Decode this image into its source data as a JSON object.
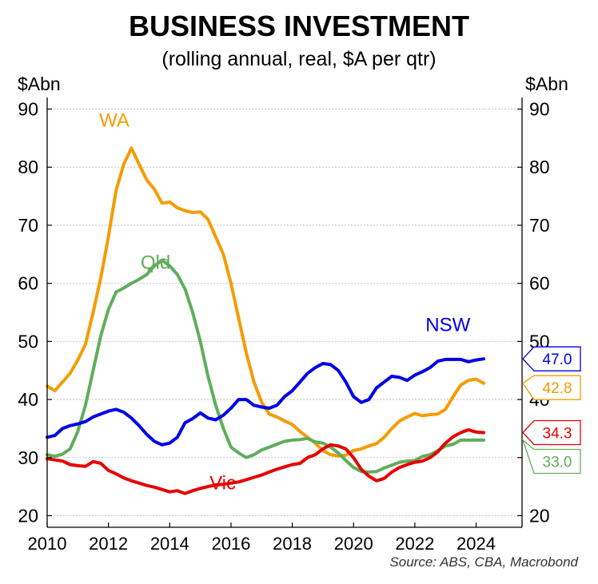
{
  "chart_data": {
    "type": "line",
    "title": "BUSINESS INVESTMENT",
    "subtitle": "(rolling annual, real, $A per qtr)",
    "ylabel_left": "$Abn",
    "ylabel_right": "$Abn",
    "source": "Source: ABS, CBA, Macrobond",
    "xlim": [
      2010,
      2025.5
    ],
    "ylim": [
      18,
      92
    ],
    "x_ticks": [
      2010,
      2012,
      2014,
      2016,
      2018,
      2020,
      2022,
      2024
    ],
    "y_ticks": [
      20,
      30,
      40,
      50,
      60,
      70,
      80,
      90
    ],
    "right_y_ticks": [
      20,
      30,
      40,
      50,
      60,
      70,
      80,
      90
    ],
    "grid": true,
    "series": [
      {
        "name": "WA",
        "color": "#f59c00",
        "end_label": "42.8",
        "label_x": 2011.7,
        "label_y": 87,
        "points": [
          [
            2010.0,
            42.3
          ],
          [
            2010.25,
            41.5
          ],
          [
            2010.5,
            43
          ],
          [
            2010.75,
            44.5
          ],
          [
            2011.0,
            46.8
          ],
          [
            2011.25,
            49.5
          ],
          [
            2011.5,
            55
          ],
          [
            2011.75,
            61
          ],
          [
            2012.0,
            68
          ],
          [
            2012.25,
            76
          ],
          [
            2012.5,
            80.5
          ],
          [
            2012.75,
            83.3
          ],
          [
            2013.0,
            80.5
          ],
          [
            2013.25,
            77.8
          ],
          [
            2013.5,
            76.2
          ],
          [
            2013.75,
            73.8
          ],
          [
            2014.0,
            74
          ],
          [
            2014.25,
            73
          ],
          [
            2014.5,
            72.5
          ],
          [
            2014.75,
            72.2
          ],
          [
            2015.0,
            72.3
          ],
          [
            2015.25,
            71
          ],
          [
            2015.5,
            68
          ],
          [
            2015.75,
            65
          ],
          [
            2016.0,
            60
          ],
          [
            2016.25,
            54
          ],
          [
            2016.5,
            48
          ],
          [
            2016.75,
            43
          ],
          [
            2017.0,
            39.5
          ],
          [
            2017.25,
            37.5
          ],
          [
            2017.5,
            37
          ],
          [
            2017.75,
            36.3
          ],
          [
            2018.0,
            35.7
          ],
          [
            2018.25,
            34.5
          ],
          [
            2018.5,
            33.5
          ],
          [
            2018.75,
            32.5
          ],
          [
            2019.0,
            31.2
          ],
          [
            2019.25,
            30.5
          ],
          [
            2019.5,
            30.3
          ],
          [
            2019.75,
            30.4
          ],
          [
            2020.0,
            31.2
          ],
          [
            2020.25,
            31.5
          ],
          [
            2020.5,
            32
          ],
          [
            2020.75,
            32.4
          ],
          [
            2021.0,
            33.5
          ],
          [
            2021.25,
            35
          ],
          [
            2021.5,
            36.3
          ],
          [
            2021.75,
            37
          ],
          [
            2022.0,
            37.6
          ],
          [
            2022.25,
            37.2
          ],
          [
            2022.5,
            37.4
          ],
          [
            2022.75,
            37.5
          ],
          [
            2023.0,
            38.3
          ],
          [
            2023.25,
            40.5
          ],
          [
            2023.5,
            42.5
          ],
          [
            2023.75,
            43.3
          ],
          [
            2024.0,
            43.5
          ],
          [
            2024.25,
            42.8
          ]
        ]
      },
      {
        "name": "Qld",
        "color": "#5fae5a",
        "end_label": "33.0",
        "label_x": 2013.05,
        "label_y": 62.5,
        "points": [
          [
            2010.0,
            30.5
          ],
          [
            2010.25,
            30.2
          ],
          [
            2010.5,
            30.6
          ],
          [
            2010.75,
            31.5
          ],
          [
            2011.0,
            34.5
          ],
          [
            2011.25,
            39
          ],
          [
            2011.5,
            45
          ],
          [
            2011.75,
            51
          ],
          [
            2012.0,
            55.5
          ],
          [
            2012.25,
            58.5
          ],
          [
            2012.5,
            59.2
          ],
          [
            2012.75,
            60
          ],
          [
            2013.0,
            60.7
          ],
          [
            2013.25,
            61.5
          ],
          [
            2013.5,
            63
          ],
          [
            2013.75,
            64
          ],
          [
            2014.0,
            63
          ],
          [
            2014.25,
            61.5
          ],
          [
            2014.5,
            59
          ],
          [
            2014.75,
            55
          ],
          [
            2015.0,
            50
          ],
          [
            2015.25,
            44
          ],
          [
            2015.5,
            39
          ],
          [
            2015.75,
            35
          ],
          [
            2016.0,
            31.8
          ],
          [
            2016.25,
            30.8
          ],
          [
            2016.5,
            30
          ],
          [
            2016.75,
            30.5
          ],
          [
            2017.0,
            31.3
          ],
          [
            2017.25,
            31.8
          ],
          [
            2017.5,
            32.3
          ],
          [
            2017.75,
            32.8
          ],
          [
            2018.0,
            33
          ],
          [
            2018.25,
            33.1
          ],
          [
            2018.5,
            33.3
          ],
          [
            2018.75,
            32.7
          ],
          [
            2019.0,
            32.5
          ],
          [
            2019.25,
            31.8
          ],
          [
            2019.5,
            30.8
          ],
          [
            2019.75,
            29.5
          ],
          [
            2020.0,
            28.3
          ],
          [
            2020.25,
            27.6
          ],
          [
            2020.5,
            27.5
          ],
          [
            2020.75,
            27.6
          ],
          [
            2021.0,
            28.2
          ],
          [
            2021.25,
            28.7
          ],
          [
            2021.5,
            29.2
          ],
          [
            2021.75,
            29.4
          ],
          [
            2022.0,
            29.5
          ],
          [
            2022.25,
            30.2
          ],
          [
            2022.5,
            30.5
          ],
          [
            2022.75,
            31.2
          ],
          [
            2023.0,
            32
          ],
          [
            2023.25,
            32.3
          ],
          [
            2023.5,
            33
          ],
          [
            2023.75,
            33
          ],
          [
            2024.0,
            33
          ],
          [
            2024.25,
            33
          ]
        ]
      },
      {
        "name": "NSW",
        "color": "#0000e6",
        "end_label": "47.0",
        "label_x": 2022.35,
        "label_y": 51.8,
        "points": [
          [
            2010.0,
            33.5
          ],
          [
            2010.25,
            33.8
          ],
          [
            2010.5,
            35
          ],
          [
            2010.75,
            35.5
          ],
          [
            2011.0,
            35.8
          ],
          [
            2011.25,
            36.2
          ],
          [
            2011.5,
            37
          ],
          [
            2011.75,
            37.5
          ],
          [
            2012.0,
            38
          ],
          [
            2012.25,
            38.3
          ],
          [
            2012.5,
            37.8
          ],
          [
            2012.75,
            36.8
          ],
          [
            2013.0,
            35.5
          ],
          [
            2013.25,
            34
          ],
          [
            2013.5,
            32.8
          ],
          [
            2013.75,
            32.2
          ],
          [
            2014.0,
            32.5
          ],
          [
            2014.25,
            33.5
          ],
          [
            2014.5,
            36
          ],
          [
            2014.75,
            36.7
          ],
          [
            2015.0,
            37.7
          ],
          [
            2015.25,
            36.8
          ],
          [
            2015.5,
            36.5
          ],
          [
            2015.75,
            37.3
          ],
          [
            2016.0,
            38.5
          ],
          [
            2016.25,
            40
          ],
          [
            2016.5,
            40
          ],
          [
            2016.75,
            39
          ],
          [
            2017.0,
            38.7
          ],
          [
            2017.25,
            38.5
          ],
          [
            2017.5,
            39
          ],
          [
            2017.75,
            40.5
          ],
          [
            2018.0,
            41.5
          ],
          [
            2018.25,
            43
          ],
          [
            2018.5,
            44.5
          ],
          [
            2018.75,
            45.5
          ],
          [
            2019.0,
            46.2
          ],
          [
            2019.25,
            46
          ],
          [
            2019.5,
            45
          ],
          [
            2019.75,
            43
          ],
          [
            2020.0,
            40.5
          ],
          [
            2020.25,
            39.5
          ],
          [
            2020.5,
            40
          ],
          [
            2020.75,
            42
          ],
          [
            2021.0,
            43
          ],
          [
            2021.25,
            44
          ],
          [
            2021.5,
            43.8
          ],
          [
            2021.75,
            43.3
          ],
          [
            2022.0,
            44.2
          ],
          [
            2022.25,
            44.8
          ],
          [
            2022.5,
            45.5
          ],
          [
            2022.75,
            46.6
          ],
          [
            2023.0,
            46.9
          ],
          [
            2023.25,
            46.9
          ],
          [
            2023.5,
            46.9
          ],
          [
            2023.75,
            46.5
          ],
          [
            2024.0,
            46.8
          ],
          [
            2024.25,
            47
          ]
        ]
      },
      {
        "name": "Vic",
        "color": "#e60000",
        "end_label": "34.3",
        "label_x": 2015.3,
        "label_y": 24.5,
        "points": [
          [
            2010.0,
            29.8
          ],
          [
            2010.25,
            29.6
          ],
          [
            2010.5,
            29.4
          ],
          [
            2010.75,
            28.8
          ],
          [
            2011.0,
            28.6
          ],
          [
            2011.25,
            28.5
          ],
          [
            2011.5,
            29.3
          ],
          [
            2011.75,
            29
          ],
          [
            2012.0,
            27.8
          ],
          [
            2012.25,
            27.2
          ],
          [
            2012.5,
            26.5
          ],
          [
            2012.75,
            26
          ],
          [
            2013.0,
            25.6
          ],
          [
            2013.25,
            25.2
          ],
          [
            2013.5,
            24.9
          ],
          [
            2013.75,
            24.5
          ],
          [
            2014.0,
            24.1
          ],
          [
            2014.25,
            24.3
          ],
          [
            2014.5,
            23.8
          ],
          [
            2014.75,
            24.3
          ],
          [
            2015.0,
            24.7
          ],
          [
            2015.25,
            25
          ],
          [
            2015.5,
            25.3
          ],
          [
            2015.75,
            25.4
          ],
          [
            2016.0,
            25.6
          ],
          [
            2016.25,
            25.8
          ],
          [
            2016.5,
            26.2
          ],
          [
            2016.75,
            26.6
          ],
          [
            2017.0,
            27
          ],
          [
            2017.25,
            27.5
          ],
          [
            2017.5,
            28
          ],
          [
            2017.75,
            28.4
          ],
          [
            2018.0,
            28.8
          ],
          [
            2018.25,
            29
          ],
          [
            2018.5,
            30
          ],
          [
            2018.75,
            30.5
          ],
          [
            2019.0,
            31.5
          ],
          [
            2019.25,
            32.2
          ],
          [
            2019.5,
            32
          ],
          [
            2019.75,
            31.5
          ],
          [
            2020.0,
            30
          ],
          [
            2020.25,
            28
          ],
          [
            2020.5,
            26.8
          ],
          [
            2020.75,
            26
          ],
          [
            2021.0,
            26.4
          ],
          [
            2021.25,
            27.5
          ],
          [
            2021.5,
            28.3
          ],
          [
            2021.75,
            28.8
          ],
          [
            2022.0,
            29.2
          ],
          [
            2022.25,
            29.4
          ],
          [
            2022.5,
            30
          ],
          [
            2022.75,
            31
          ],
          [
            2023.0,
            32.5
          ],
          [
            2023.25,
            33.6
          ],
          [
            2023.5,
            34.3
          ],
          [
            2023.75,
            34.8
          ],
          [
            2024.0,
            34.4
          ],
          [
            2024.25,
            34.3
          ]
        ]
      }
    ]
  }
}
